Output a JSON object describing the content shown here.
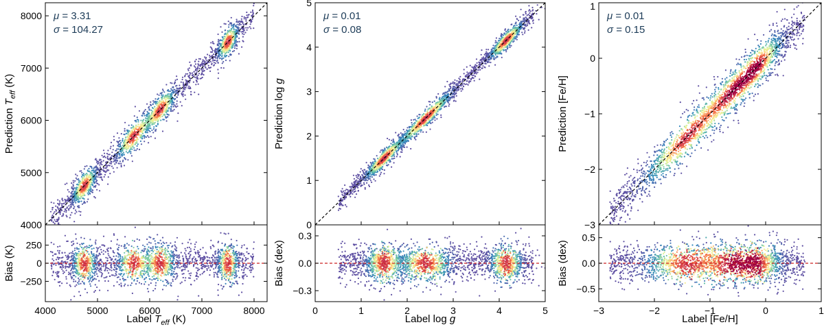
{
  "chart_data": [
    {
      "type": "scatter",
      "name": "teff",
      "xlabel_text": "Label ",
      "xlabel_italic": "T",
      "xlabel_sub": "eff",
      "xlabel_unit": " (K)",
      "ylabel_text": "Prediction ",
      "ylabel_italic": "T",
      "ylabel_sub": "eff",
      "ylabel_unit": " (K)",
      "bias_label": "Bias (K)",
      "mu_label": "μ",
      "mu_value": "= 3.31",
      "sigma_label": "σ",
      "sigma_value": "= 104.27",
      "xlim": [
        4000,
        8250
      ],
      "ylim": [
        4000,
        8250
      ],
      "bias_lim": [
        -530,
        530
      ],
      "x_ticks": [
        4000,
        5000,
        6000,
        7000,
        8000
      ],
      "x_tick_labels": [
        "4000",
        "5000",
        "6000",
        "7000",
        "8000"
      ],
      "y_ticks": [
        4000,
        5000,
        6000,
        7000,
        8000
      ],
      "y_tick_labels": [
        "4000",
        "5000",
        "6000",
        "7000",
        "8000"
      ],
      "bias_ticks": [
        -250,
        0,
        250
      ],
      "bias_tick_labels": [
        "−250",
        "0",
        "250"
      ],
      "clusters": [
        [
          4750,
          4760,
          140
        ],
        [
          5700,
          5690,
          200
        ],
        [
          6200,
          6180,
          180
        ],
        [
          7500,
          7460,
          120
        ]
      ],
      "scatter_sd": 110,
      "data_range": [
        4100,
        8000
      ],
      "hot_spots": [
        [
          4750,
          60
        ],
        [
          5700,
          30
        ]
      ],
      "bias_mean": 0,
      "bias_sd": 120
    },
    {
      "type": "scatter",
      "name": "logg",
      "xlabel_text": "Label log ",
      "xlabel_italic": "g",
      "xlabel_sub": "",
      "xlabel_unit": "",
      "ylabel_text": "Prediction log ",
      "ylabel_italic": "g",
      "ylabel_sub": "",
      "ylabel_unit": "",
      "bias_label": "Bias (dex)",
      "mu_label": "μ",
      "mu_value": "= 0.01",
      "sigma_label": "σ",
      "sigma_value": "= 0.08",
      "xlim": [
        0,
        5
      ],
      "ylim": [
        0,
        5
      ],
      "bias_lim": [
        -0.42,
        0.42
      ],
      "x_ticks": [
        0,
        1,
        2,
        3,
        4,
        5
      ],
      "x_tick_labels": [
        "0",
        "1",
        "2",
        "3",
        "4",
        "5"
      ],
      "y_ticks": [
        0,
        1,
        2,
        3,
        4,
        5
      ],
      "y_tick_labels": [
        "0",
        "1",
        "2",
        "3",
        "4",
        "5"
      ],
      "bias_ticks": [
        -0.3,
        0.0,
        0.3
      ],
      "bias_tick_labels": [
        "−0.3",
        "0.0",
        "0.3"
      ],
      "clusters": [
        [
          2.4,
          2.42,
          0.35
        ],
        [
          4.15,
          4.16,
          0.22
        ],
        [
          1.5,
          1.52,
          0.25
        ]
      ],
      "scatter_sd": 0.08,
      "data_range": [
        0.5,
        4.75
      ],
      "hot_spots": [
        [
          4.15,
          0.05
        ],
        [
          2.4,
          0.02
        ]
      ],
      "bias_mean": 0,
      "bias_sd": 0.1
    },
    {
      "type": "scatter",
      "name": "feh",
      "xlabel_text": "Label [Fe/H]",
      "xlabel_italic": "",
      "xlabel_sub": "",
      "xlabel_unit": "",
      "ylabel_text": "Prediction [Fe/H]",
      "ylabel_italic": "",
      "ylabel_sub": "",
      "ylabel_unit": "",
      "bias_label": "Bias (dex)",
      "mu_label": "μ",
      "mu_value": "= 0.01",
      "sigma_label": "σ",
      "sigma_value": "= 0.15",
      "xlim": [
        -3,
        1
      ],
      "ylim": [
        -3,
        1
      ],
      "bias_lim": [
        -0.75,
        0.75
      ],
      "x_ticks": [
        -3,
        -2,
        -1,
        0,
        1
      ],
      "x_tick_labels": [
        "−3",
        "−2",
        "−1",
        "0",
        "1"
      ],
      "y_ticks": [
        -3,
        -2,
        -1,
        0
      ],
      "y_tick_labels": [
        "−3",
        "−2",
        "−1",
        "0"
      ],
      "y_top_tick_label": "1",
      "bias_ticks": [
        -0.5,
        0.0,
        0.5
      ],
      "bias_tick_labels": [
        "−0.5",
        "0.0",
        "0.5"
      ],
      "clusters": [
        [
          -0.15,
          -0.12,
          0.28
        ],
        [
          -0.6,
          -0.55,
          0.35
        ],
        [
          -1.4,
          -1.3,
          0.5
        ]
      ],
      "scatter_sd": 0.15,
      "data_range": [
        -2.8,
        0.7
      ],
      "hot_spots": [
        [
          -0.1,
          -0.02
        ]
      ],
      "bias_mean": 0,
      "bias_sd": 0.22
    }
  ],
  "colors": {
    "low": "#5e4fa2",
    "mid1": "#3288bd",
    "mid2": "#66c2a5",
    "mid3": "#e6f598",
    "mid4": "#fee08b",
    "high1": "#f46d43",
    "high2": "#d53e4f",
    "peak": "#9e0142",
    "diagonal": "#000000",
    "zero_line": "#cc2222",
    "stat_text": "#1c3b57"
  }
}
